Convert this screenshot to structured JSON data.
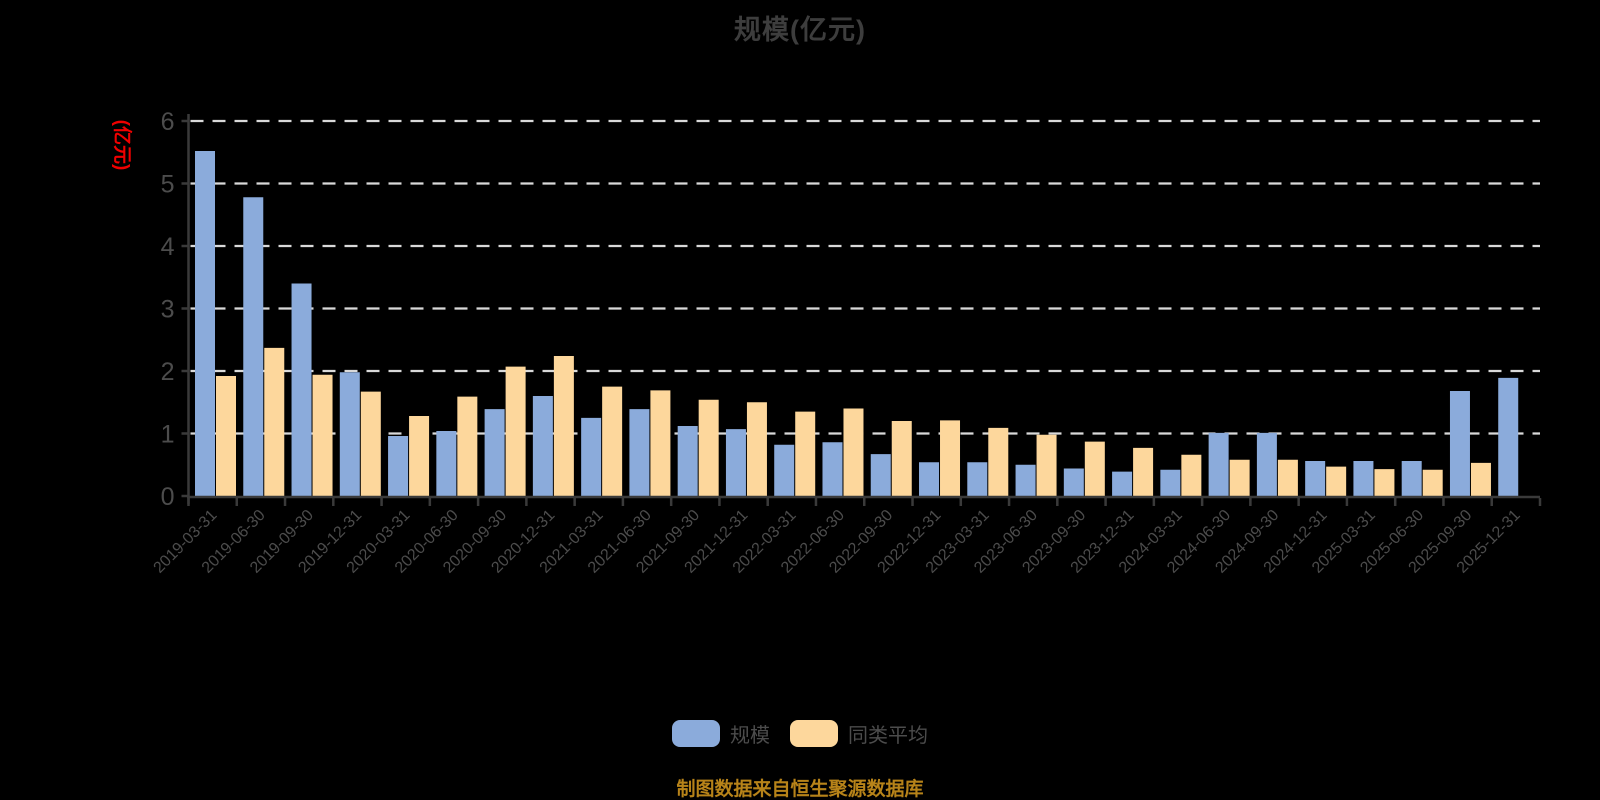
{
  "title": "规模(亿元)",
  "y_axis_name": "(亿元)",
  "source_note": "制图数据来自恒生聚源数据库",
  "legend": [
    {
      "label": "规模",
      "color": "#8BABDB"
    },
    {
      "label": "同类平均",
      "color": "#FDD79C"
    }
  ],
  "colors": {
    "background": "#000000",
    "title_text": "#3d3d3d",
    "y_axis_name_text": "#f00000",
    "axis_line": "#3a3a3a",
    "gridline": "#d9d9d9",
    "tick_label": "#4c4c4c",
    "source_text": "#b78319",
    "series_scale": "#8BABDB",
    "series_peer_average": "#FDD79C"
  },
  "chart_data": {
    "type": "bar",
    "title": "规模(亿元)",
    "xlabel": "",
    "ylabel": "(亿元)",
    "ylim": [
      0,
      6
    ],
    "y_ticks": [
      0,
      1,
      2,
      3,
      4,
      5,
      6
    ],
    "grid": true,
    "grid_style": "dashed",
    "legend_position": "bottom",
    "categories": [
      "2019-03-31",
      "2019-06-30",
      "2019-09-30",
      "2019-12-31",
      "2020-03-31",
      "2020-06-30",
      "2020-09-30",
      "2020-12-31",
      "2021-03-31",
      "2021-06-30",
      "2021-09-30",
      "2021-12-31",
      "2022-03-31",
      "2022-06-30",
      "2022-09-30",
      "2022-12-31",
      "2023-03-31",
      "2023-06-30",
      "2023-09-30",
      "2023-12-31",
      "2024-03-31",
      "2024-06-30",
      "2024-09-30",
      "2024-12-31",
      "2025-03-31",
      "2025-06-30",
      "2025-09-30",
      "2025-12-31"
    ],
    "series": [
      {
        "name": "规模",
        "color": "#8BABDB",
        "values": [
          5.52,
          4.78,
          3.4,
          1.98,
          0.96,
          1.04,
          1.39,
          1.6,
          1.25,
          1.39,
          1.12,
          1.07,
          0.82,
          0.86,
          0.67,
          0.54,
          0.54,
          0.5,
          0.44,
          0.39,
          0.42,
          1.01,
          1.01,
          0.56,
          0.56,
          0.56,
          1.68,
          1.89
        ]
      },
      {
        "name": "同类平均",
        "color": "#FDD79C",
        "values": [
          1.92,
          2.37,
          1.94,
          1.67,
          1.28,
          1.59,
          2.07,
          2.24,
          1.75,
          1.69,
          1.54,
          1.5,
          1.35,
          1.4,
          1.2,
          1.21,
          1.09,
          0.98,
          0.87,
          0.77,
          0.66,
          0.58,
          0.58,
          0.47,
          0.43,
          0.42,
          0.53,
          null
        ]
      }
    ]
  }
}
